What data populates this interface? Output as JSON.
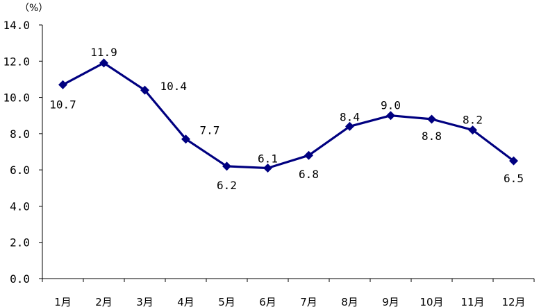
{
  "chart_data": {
    "type": "line",
    "y_unit": "（%）",
    "categories": [
      "1月",
      "2月",
      "3月",
      "4月",
      "5月",
      "6月",
      "7月",
      "8月",
      "9月",
      "10月",
      "11月",
      "12月"
    ],
    "values": [
      10.7,
      11.9,
      10.4,
      7.7,
      6.2,
      6.1,
      6.8,
      8.4,
      9.0,
      8.8,
      8.2,
      6.5
    ],
    "data_labels": [
      "10.7",
      "11.9",
      "10.4",
      "7.7",
      "6.2",
      "6.1",
      "6.8",
      "8.4",
      "9.0",
      "8.8",
      "8.2",
      "6.5"
    ],
    "ylim": [
      0,
      14
    ],
    "y_ticks": [
      0,
      2,
      4,
      6,
      8,
      10,
      12,
      14
    ],
    "y_tick_labels": [
      "0.0",
      "2.0",
      "4.0",
      "6.0",
      "8.0",
      "10.0",
      "12.0",
      "14.0"
    ],
    "grid": false,
    "legend": "none",
    "line_color": "#000080",
    "marker": "diamond"
  }
}
